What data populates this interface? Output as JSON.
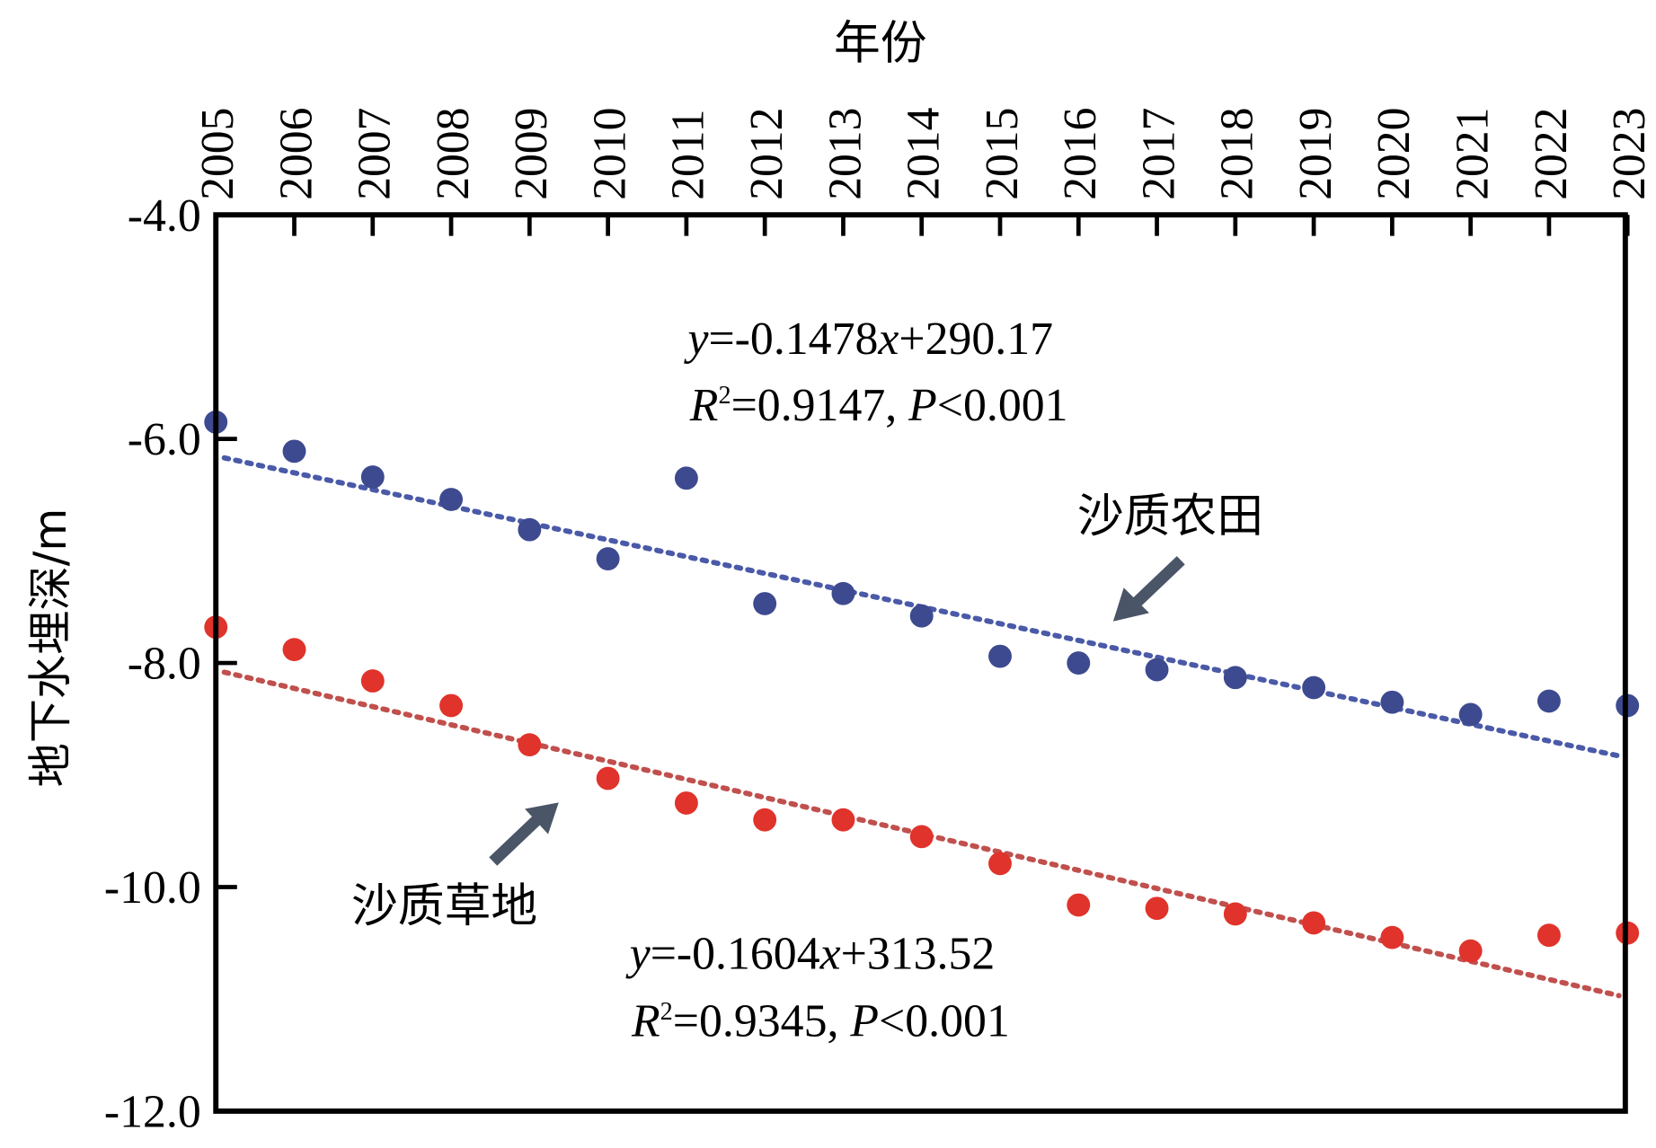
{
  "chart_data": {
    "type": "scatter",
    "title": "",
    "xlabel": "年份",
    "ylabel": "地下水埋深/m",
    "x": [
      2005,
      2006,
      2007,
      2008,
      2009,
      2010,
      2011,
      2012,
      2013,
      2014,
      2015,
      2016,
      2017,
      2018,
      2019,
      2020,
      2021,
      2022,
      2023
    ],
    "xlim": [
      2005,
      2023
    ],
    "ylim": [
      -12,
      -4
    ],
    "yticks": [
      -4,
      -6,
      -8,
      -10,
      -12
    ],
    "ytick_labels": [
      "-4.0",
      "-6.0",
      "-8.0",
      "-10.0",
      "-12.0"
    ],
    "xtick_labels": [
      "2005",
      "2006",
      "2007",
      "2008",
      "2009",
      "2010",
      "2011",
      "2012",
      "2013",
      "2014",
      "2015",
      "2016",
      "2017",
      "2018",
      "2019",
      "2020",
      "2021",
      "2022",
      "2023"
    ],
    "grid": false,
    "series": [
      {
        "name": "沙质农田",
        "color": "#3d4a8f",
        "trend_color": "#4a5aa8",
        "values": [
          -5.85,
          -6.11,
          -6.34,
          -6.54,
          -6.81,
          -7.07,
          -6.35,
          -7.47,
          -7.38,
          -7.58,
          -7.94,
          -8.0,
          -8.06,
          -8.13,
          -8.22,
          -8.35,
          -8.46,
          -8.34,
          -8.38
        ],
        "trend": {
          "slope": -0.1478,
          "intercept": 290.17
        },
        "eq_y": "y",
        "eq_rest": "=-0.1478",
        "eq_x": "x",
        "eq_tail": "+290.17",
        "r_label": "R",
        "r_sup": "2",
        "r_rest": "=0.9147, ",
        "p_label": "P",
        "p_rest": "<0.001"
      },
      {
        "name": "沙质草地",
        "color": "#e0332b",
        "trend_color": "#c0504d",
        "values": [
          -7.68,
          -7.88,
          -8.16,
          -8.38,
          -8.73,
          -9.03,
          -9.25,
          -9.4,
          -9.4,
          -9.55,
          -9.79,
          -10.16,
          -10.19,
          -10.24,
          -10.32,
          -10.45,
          -10.57,
          -10.43,
          -10.41
        ],
        "trend": {
          "slope": -0.1604,
          "intercept": 313.52
        },
        "eq_y": "y",
        "eq_rest": "=-0.1604",
        "eq_x": "x",
        "eq_tail": "+313.52",
        "r_label": "R",
        "r_sup": "2",
        "r_rest": "=0.9345, ",
        "p_label": "P",
        "p_rest": "<0.001"
      }
    ],
    "arrow_color": "#4a5568"
  }
}
